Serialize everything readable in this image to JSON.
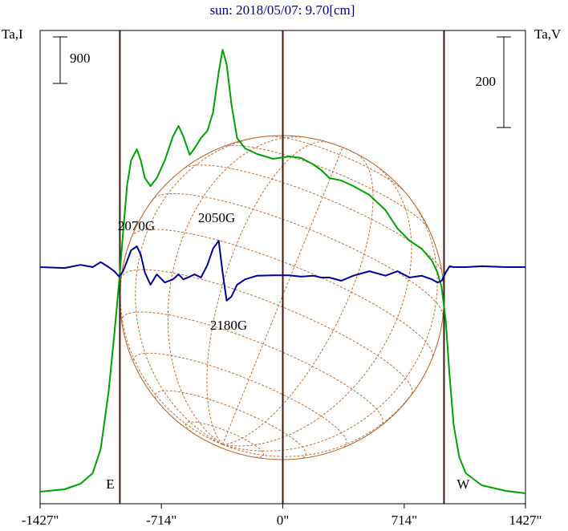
{
  "chart_data": {
    "type": "line",
    "title": "sun: 2018/05/07: 9.70[cm]",
    "y_label": "Ta,I",
    "y2_label": "Ta,V",
    "x": [
      -1427,
      -1283,
      -1189,
      -1118,
      -1071,
      -1024,
      -991,
      -962,
      -939,
      -915,
      -892,
      -858,
      -835,
      -811,
      -778,
      -741,
      -694,
      -646,
      -613,
      -585,
      -547,
      -519,
      -481,
      -443,
      -410,
      -377,
      -354,
      -330,
      -302,
      -269,
      -222,
      -151,
      -57,
      38,
      108,
      179,
      226,
      274,
      344,
      415,
      509,
      604,
      675,
      745,
      816,
      877,
      910,
      934,
      958,
      981,
      1005,
      1038,
      1076,
      1170,
      1311,
      1427
    ],
    "series": [
      {
        "color": "#00a000",
        "values": [
          233,
          279,
          388,
          590,
          1055,
          2172,
          3258,
          4314,
          5245,
          6176,
          6641,
          6859,
          6641,
          6300,
          6145,
          6300,
          6641,
          7107,
          7308,
          7107,
          6750,
          6874,
          7076,
          7215,
          7572,
          8348,
          8783,
          8503,
          7727,
          7076,
          6874,
          6765,
          6672,
          6719,
          6688,
          6564,
          6455,
          6300,
          6253,
          6145,
          5974,
          5679,
          5322,
          5090,
          4934,
          4702,
          4469,
          4190,
          3538,
          2452,
          1521,
          900,
          590,
          357,
          248,
          202
        ]
      },
      {
        "color": "#000090",
        "axis": "y2",
        "values": [
          0,
          -2,
          5,
          0,
          11,
          0,
          -9,
          -21,
          -9,
          14,
          37,
          46,
          27,
          -12,
          -39,
          -16,
          -34,
          -27,
          -16,
          -27,
          -21,
          -16,
          -23,
          5,
          41,
          58,
          -12,
          -74,
          -65,
          -39,
          -27,
          -19,
          -18,
          -18,
          -21,
          -19,
          -23,
          -23,
          -30,
          -19,
          -9,
          -19,
          -9,
          -23,
          -19,
          -27,
          -34,
          -30,
          -12,
          2,
          0,
          0,
          0,
          2,
          0,
          0
        ]
      }
    ],
    "xlim": [
      -1427,
      1427
    ],
    "xticks": [
      {
        "value": -1427,
        "label": "-1427\""
      },
      {
        "value": -714,
        "label": "-714\""
      },
      {
        "value": 0,
        "label": "0\""
      },
      {
        "value": 714,
        "label": "714\""
      },
      {
        "value": 1427,
        "label": "1427\""
      }
    ],
    "ylim": [
      0,
      9155
    ],
    "y2lim": [
      -522,
      522
    ],
    "y_scale_bar": 900,
    "y2_scale_bar": 200,
    "limb_x": [
      -958,
      948
    ],
    "limb_labels": [
      "E",
      "W"
    ],
    "annotations": [
      "2070G",
      "2050G",
      "2180G"
    ]
  }
}
